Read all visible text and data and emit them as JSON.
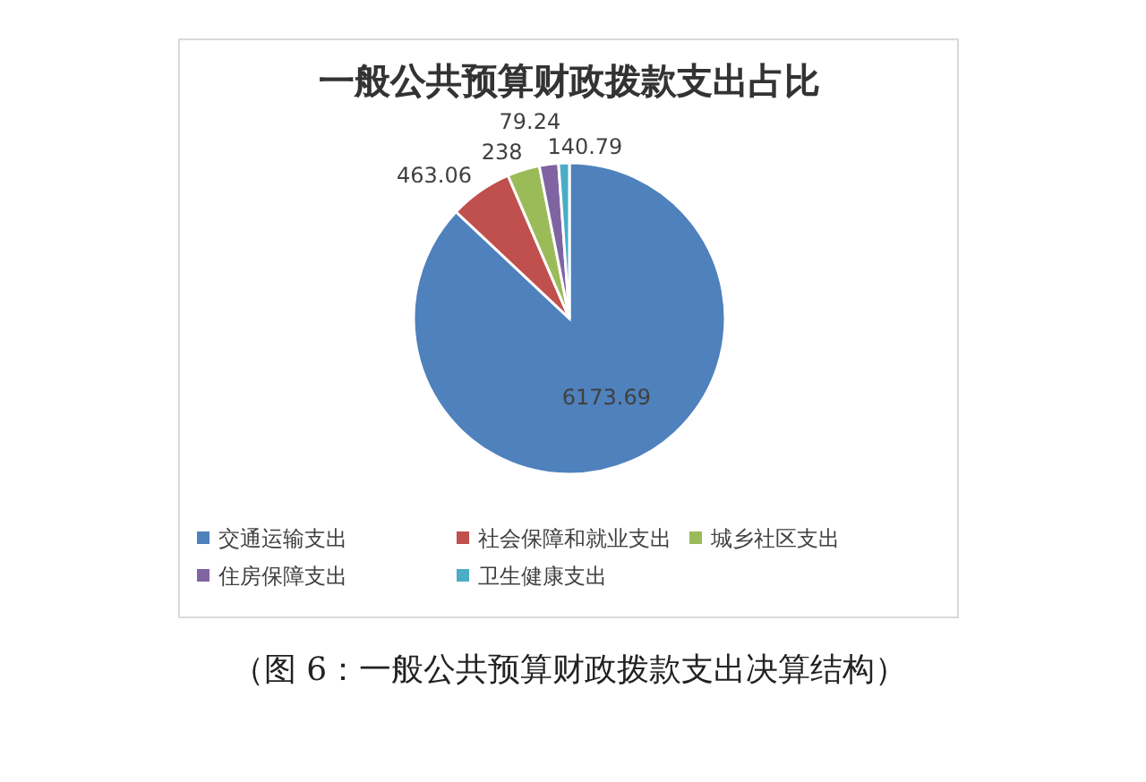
{
  "chart_data": {
    "type": "pie",
    "title": "一般公共预算财政拨款支出占比",
    "categories": [
      "交通运输支出",
      "社会保障和就业支出",
      "城乡社区支出",
      "住房保障支出",
      "卫生健康支出"
    ],
    "values": [
      6173.69,
      463.06,
      238,
      140.79,
      79.24
    ],
    "colors": [
      "#4f81bd",
      "#c0504d",
      "#9bbb59",
      "#8064a2",
      "#4bacc6"
    ],
    "value_labels": [
      "6173.69",
      "463.06",
      "238",
      "140.79",
      "79.24"
    ],
    "legend": "bottom",
    "annotations": [
      "（图 6：一般公共预算财政拨款支出决算结构）"
    ]
  }
}
